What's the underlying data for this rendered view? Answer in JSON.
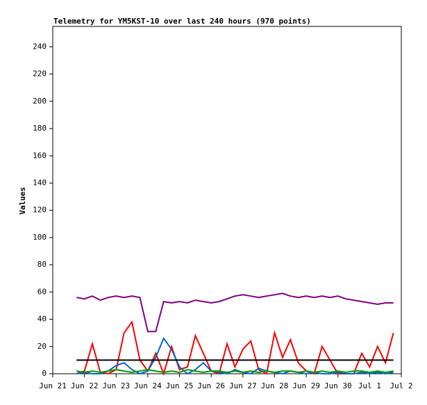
{
  "chart_data": {
    "type": "line",
    "title": "Telemetry for YM5KST-10 over last 240 hours (970 points)",
    "y_label": "Values",
    "x": [
      0.75,
      1.0,
      1.25,
      1.5,
      1.75,
      2.0,
      2.25,
      2.5,
      2.75,
      3.0,
      3.25,
      3.5,
      3.75,
      4.0,
      4.25,
      4.5,
      4.75,
      5.0,
      5.25,
      5.5,
      5.75,
      6.0,
      6.25,
      6.5,
      6.75,
      7.0,
      7.25,
      7.5,
      7.75,
      8.0,
      8.25,
      8.5,
      8.75,
      9.0,
      9.25,
      9.5,
      9.75,
      10.0,
      10.25,
      10.5,
      10.75
    ],
    "series": [
      {
        "color": "#ff0000",
        "values": [
          0,
          2,
          22,
          1,
          0,
          3,
          30,
          38,
          10,
          2,
          15,
          0,
          20,
          3,
          5,
          28,
          15,
          2,
          0,
          22,
          5,
          18,
          24,
          3,
          0,
          30,
          12,
          25,
          8,
          2,
          0,
          20,
          10,
          0,
          0,
          0,
          15,
          5,
          20,
          8,
          30
        ]
      },
      {
        "color": "#0066cc",
        "values": [
          0,
          1,
          0,
          0,
          2,
          6,
          8,
          3,
          0,
          2,
          12,
          26,
          18,
          5,
          0,
          3,
          8,
          2,
          1,
          0,
          3,
          1,
          0,
          4,
          2,
          1,
          0,
          2,
          1,
          0,
          1,
          0,
          0,
          1,
          0,
          0,
          1,
          0,
          1,
          0,
          1
        ]
      },
      {
        "color": "#009900",
        "values": [
          2,
          1,
          2,
          1,
          2,
          3,
          2,
          1,
          2,
          3,
          2,
          1,
          2,
          1,
          3,
          2,
          1,
          2,
          2,
          1,
          2,
          1,
          2,
          1,
          2,
          1,
          2,
          2,
          1,
          2,
          1,
          2,
          1,
          2,
          1,
          2,
          2,
          1,
          2,
          1,
          2
        ]
      },
      {
        "color": "#000000",
        "values": [
          10,
          10,
          10,
          10,
          10,
          10,
          10,
          10,
          10,
          10,
          10,
          10,
          10,
          10,
          10,
          10,
          10,
          10,
          10,
          10,
          10,
          10,
          10,
          10,
          10,
          10,
          10,
          10,
          10,
          10,
          10,
          10,
          10,
          10,
          10,
          10,
          10,
          10,
          10,
          10,
          10
        ]
      },
      {
        "color": "#800080",
        "values": [
          56,
          55,
          57,
          54,
          56,
          57,
          56,
          57,
          56,
          31,
          31,
          53,
          52,
          53,
          52,
          54,
          53,
          52,
          53,
          55,
          57,
          58,
          57,
          56,
          57,
          58,
          59,
          57,
          56,
          57,
          56,
          57,
          56,
          57,
          55,
          54,
          53,
          52,
          51,
          52,
          52
        ]
      }
    ],
    "xlim": [
      0,
      11
    ],
    "xticks": [
      {
        "value": 0,
        "label": "Jun 21"
      },
      {
        "value": 1,
        "label": "Jun 22"
      },
      {
        "value": 2,
        "label": "Jun 23"
      },
      {
        "value": 3,
        "label": "Jun 24"
      },
      {
        "value": 4,
        "label": "Jun 25"
      },
      {
        "value": 5,
        "label": "Jun 26"
      },
      {
        "value": 6,
        "label": "Jun 27"
      },
      {
        "value": 7,
        "label": "Jun 28"
      },
      {
        "value": 8,
        "label": "Jun 29"
      },
      {
        "value": 9,
        "label": "Jun 30"
      },
      {
        "value": 10,
        "label": "Jul 1"
      },
      {
        "value": 11,
        "label": "Jul 2"
      }
    ],
    "ylim": [
      0,
      255
    ],
    "yticks": [
      0,
      20,
      40,
      60,
      80,
      100,
      120,
      140,
      160,
      180,
      200,
      220,
      240
    ]
  }
}
